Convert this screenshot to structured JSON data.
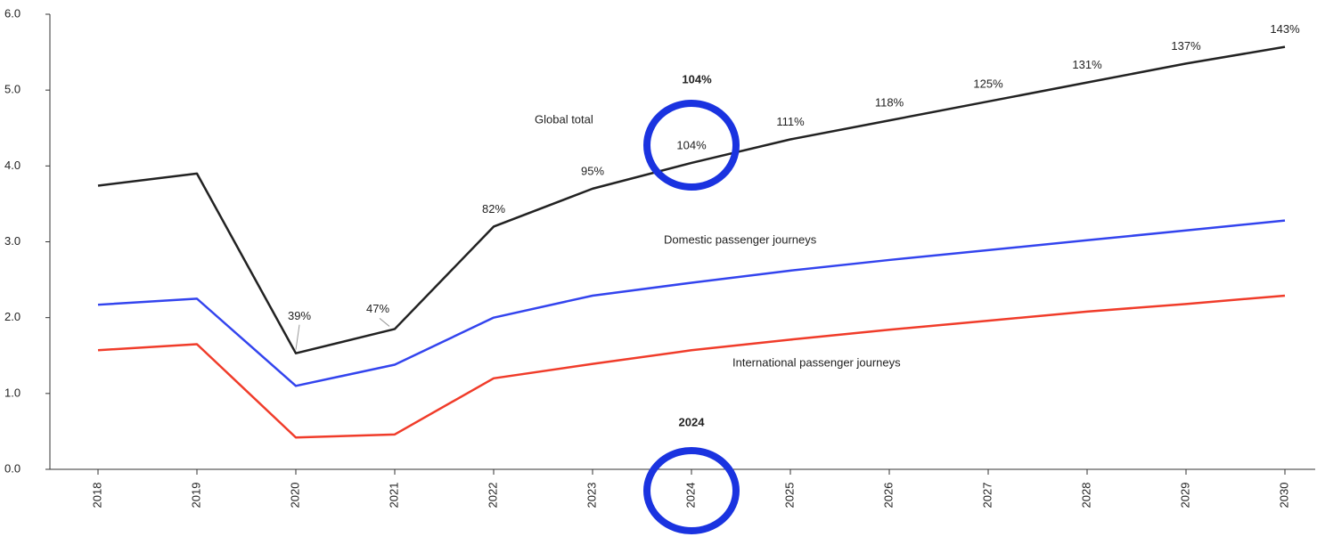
{
  "chart_data": {
    "type": "line",
    "categories": [
      "2018",
      "2019",
      "2020",
      "2021",
      "2022",
      "2023",
      "2024",
      "2025",
      "2026",
      "2027",
      "2028",
      "2029",
      "2030"
    ],
    "series": [
      {
        "name": "Global total",
        "color": "#222222",
        "values": [
          3.74,
          3.9,
          1.53,
          1.85,
          3.2,
          3.7,
          4.04,
          4.35,
          4.6,
          4.85,
          5.1,
          5.35,
          5.57
        ],
        "recovery_labels": [
          null,
          null,
          "39%",
          "47%",
          "82%",
          "95%",
          "104%",
          "111%",
          "118%",
          "125%",
          "131%",
          "137%",
          "143%"
        ]
      },
      {
        "name": "Domestic passenger journeys",
        "color": "#3344ee",
        "values": [
          2.17,
          2.25,
          1.1,
          1.38,
          2.0,
          2.29,
          2.46,
          2.62,
          2.76,
          2.89,
          3.02,
          3.15,
          3.28
        ]
      },
      {
        "name": "International passenger journeys",
        "color": "#f03c2a",
        "values": [
          1.57,
          1.65,
          0.42,
          0.46,
          1.2,
          1.39,
          1.57,
          1.71,
          1.84,
          1.96,
          2.08,
          2.18,
          2.29
        ]
      }
    ],
    "ylim": [
      0,
      6
    ],
    "yticks": [
      {
        "value": 0,
        "label": "0.0"
      },
      {
        "value": 1,
        "label": "1.0"
      },
      {
        "value": 2,
        "label": "2.0"
      },
      {
        "value": 3,
        "label": "3.0"
      },
      {
        "value": 4,
        "label": "4.0"
      },
      {
        "value": 5,
        "label": "5.0"
      },
      {
        "value": 6,
        "label": "6.0"
      }
    ],
    "highlight_value": "104%",
    "highlight_year": "2024",
    "highlight_color": "#1a33e0"
  }
}
